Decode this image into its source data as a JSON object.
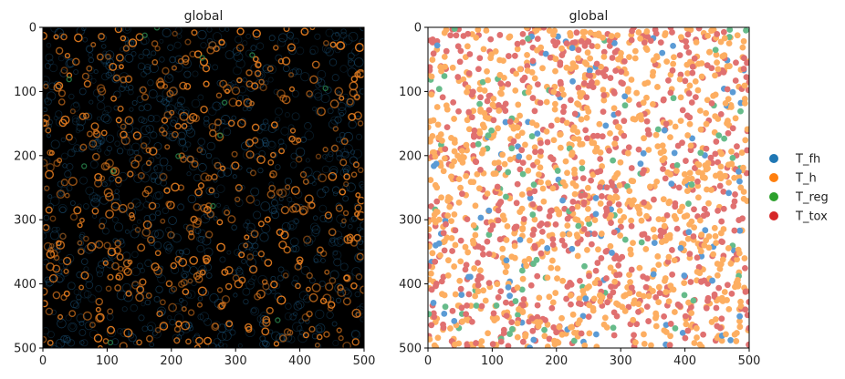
{
  "chart_data": [
    {
      "type": "heatmap",
      "title": "global",
      "xlim": [
        0,
        500
      ],
      "ylim": [
        500,
        0
      ],
      "x_ticks": [
        0,
        100,
        200,
        300,
        400,
        500
      ],
      "y_ticks": [
        0,
        100,
        200,
        300,
        400,
        500
      ],
      "colors": {
        "background": "#000000",
        "cell_primary": "#e07a1f",
        "cell_secondary": "#1f5f8a",
        "cell_accent": "#2a8a4f"
      },
      "description_kind": "fluorescence-microscopy"
    },
    {
      "type": "scatter",
      "title": "global",
      "xlim": [
        0,
        500
      ],
      "ylim": [
        500,
        0
      ],
      "x_ticks": [
        0,
        100,
        200,
        300,
        400,
        500
      ],
      "y_ticks": [
        0,
        100,
        200,
        300,
        400,
        500
      ],
      "legend": {
        "placement": "right",
        "entries": [
          {
            "label": "T_fh",
            "color": "#1f77b4",
            "plot_color": "#5b9bd5",
            "share": 0.06
          },
          {
            "label": "T_h",
            "color": "#ff7f0e",
            "plot_color": "#fdae61",
            "share": 0.52
          },
          {
            "label": "T_reg",
            "color": "#2ca02c",
            "plot_color": "#66bb8a",
            "share": 0.05
          },
          {
            "label": "T_tox",
            "color": "#d62728",
            "plot_color": "#e07070",
            "share": 0.37
          }
        ]
      },
      "point_count": 1800
    }
  ]
}
